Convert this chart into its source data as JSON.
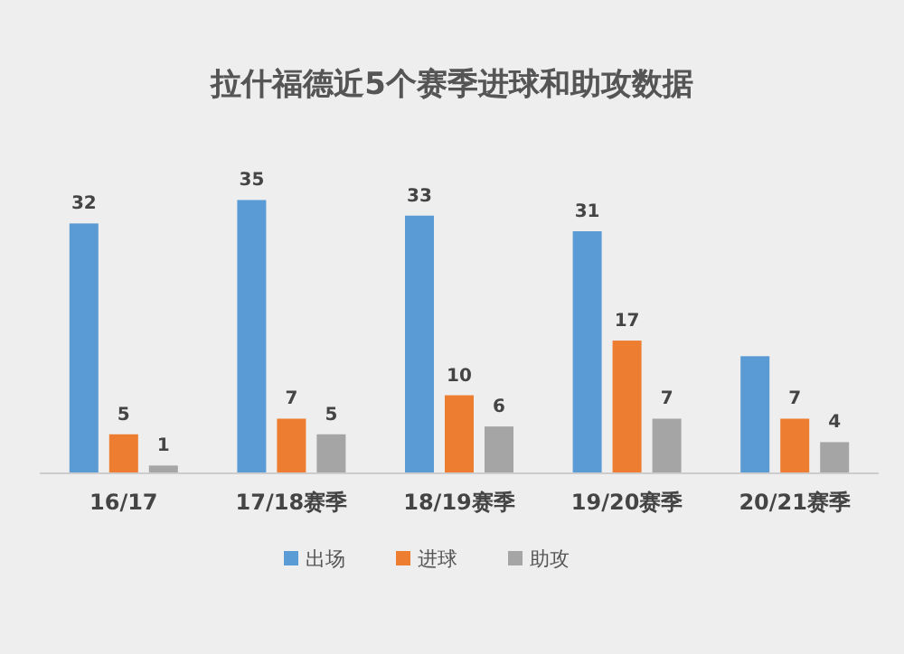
{
  "chart_data": {
    "type": "bar",
    "title": "拉什福德近5个赛季进球和助攻数据",
    "categories": [
      "16/17",
      "17/18赛季",
      "18/19赛季",
      "19/20赛季",
      "20/21赛季"
    ],
    "series": [
      {
        "name": "出场",
        "color": "#5b9bd5",
        "values": [
          32,
          35,
          33,
          31,
          15
        ],
        "value_labels": [
          "32",
          "35",
          "33",
          "31",
          null
        ]
      },
      {
        "name": "进球",
        "color": "#ed7d31",
        "values": [
          5,
          7,
          10,
          17,
          7
        ],
        "value_labels": [
          "5",
          "7",
          "10",
          "17",
          "7"
        ]
      },
      {
        "name": "助攻",
        "color": "#a5a5a5",
        "values": [
          1,
          5,
          6,
          7,
          4
        ],
        "value_labels": [
          "1",
          "5",
          "6",
          "7",
          "4"
        ]
      }
    ],
    "legend": "bottom"
  }
}
